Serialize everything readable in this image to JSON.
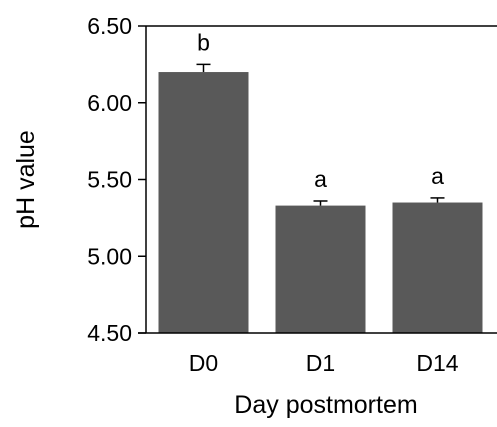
{
  "chart_data": {
    "type": "bar",
    "title": "",
    "xlabel": "Day postmortem",
    "ylabel": "pH value",
    "categories": [
      "D0",
      "D1",
      "D14"
    ],
    "values": [
      6.2,
      5.33,
      5.35
    ],
    "errors": [
      0.05,
      0.03,
      0.03
    ],
    "significance": [
      "b",
      "a",
      "a"
    ],
    "ylim": [
      4.5,
      6.5
    ],
    "yticks": [
      "4.50",
      "5.00",
      "5.50",
      "6.00",
      "6.50"
    ],
    "grid": false,
    "legend": "none",
    "bar_color": "#595959"
  }
}
